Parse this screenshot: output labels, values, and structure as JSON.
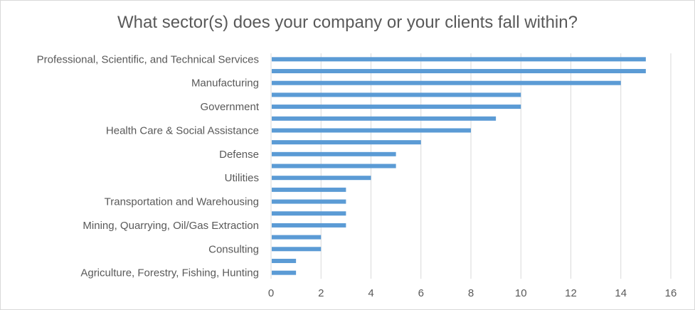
{
  "chart_data": {
    "type": "bar",
    "orientation": "horizontal",
    "title": "What sector(s) does your company or your clients fall within?",
    "xlabel": "",
    "ylabel": "",
    "xlim": [
      0,
      16
    ],
    "x_ticks": [
      0,
      2,
      4,
      6,
      8,
      10,
      12,
      14,
      16
    ],
    "grid": true,
    "legend": "none",
    "bar_color": "#5b9bd5",
    "categories": [
      "Professional, Scientific, and Technical Services",
      "",
      "Manufacturing",
      "",
      "Government",
      "",
      "Health Care & Social Assistance",
      "",
      "Defense",
      "",
      "Utilities",
      "",
      "Transportation and Warehousing",
      "",
      "Mining, Quarrying, Oil/Gas Extraction",
      "",
      "Consulting",
      "",
      "Agriculture, Forestry, Fishing, Hunting"
    ],
    "values": [
      15,
      15,
      14,
      10,
      10,
      9,
      8,
      6,
      5,
      5,
      4,
      3,
      3,
      3,
      3,
      2,
      2,
      1,
      1
    ]
  }
}
